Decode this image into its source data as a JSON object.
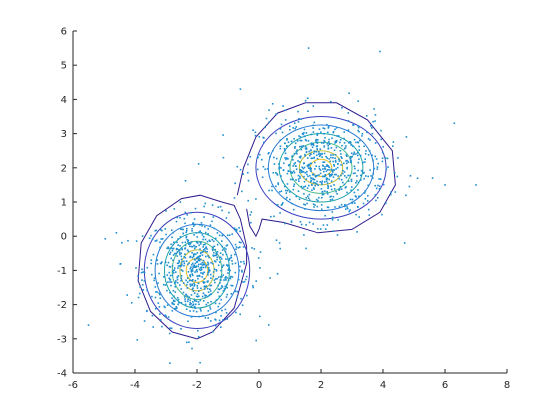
{
  "chart_data": {
    "type": "scatter",
    "title": "",
    "xlabel": "",
    "ylabel": "",
    "xlim": [
      -6,
      8
    ],
    "ylim": [
      -4,
      6
    ],
    "grid": false,
    "legend": "none",
    "x_ticks": [
      -6,
      -4,
      -2,
      0,
      2,
      4,
      6,
      8
    ],
    "y_ticks": [
      -4,
      -3,
      -2,
      -1,
      0,
      1,
      2,
      3,
      4,
      5,
      6
    ],
    "x_tick_labels": [
      "-6",
      "-4",
      "-2",
      "0",
      "2",
      "4",
      "6",
      "8"
    ],
    "y_tick_labels": [
      "-4",
      "-3",
      "-2",
      "-1",
      "0",
      "1",
      "2",
      "3",
      "4",
      "5",
      "6"
    ],
    "point_color": "#1f8fd0",
    "clusters": [
      {
        "center": [
          -2,
          -1
        ],
        "std": [
          0.85,
          0.8
        ],
        "count": 720
      },
      {
        "center": [
          2,
          2
        ],
        "std": [
          1.05,
          0.75
        ],
        "count": 720
      }
    ],
    "scattered_outliers": [
      [
        -5.5,
        -2.6
      ],
      [
        1.6,
        5.5
      ],
      [
        3.9,
        5.4
      ],
      [
        7.0,
        1.5
      ],
      [
        6.3,
        3.3
      ],
      [
        -4.6,
        0.1
      ],
      [
        0.6,
        -1.1
      ],
      [
        -1.9,
        -3.7
      ],
      [
        5.6,
        1.7
      ],
      [
        -0.6,
        4.3
      ],
      [
        4.7,
        -0.2
      ],
      [
        6.0,
        1.5
      ]
    ],
    "contours": {
      "colors": [
        "#2f1b8c",
        "#3a3fbf",
        "#2a7ad4",
        "#1ea3a8",
        "#48b88a",
        "#b8b83a",
        "#e8c020"
      ],
      "outer_envelope": {
        "color": "#2f1b8c",
        "points": [
          [
            -1.2,
            1.0
          ],
          [
            -0.8,
            0.9
          ],
          [
            -0.6,
            0.5
          ],
          [
            -0.4,
            -0.3
          ],
          [
            -0.4,
            -0.8
          ],
          [
            -0.8,
            -2.1
          ],
          [
            -1.5,
            -2.8
          ],
          [
            -2.0,
            -3.0
          ],
          [
            -2.8,
            -2.8
          ],
          [
            -3.5,
            -2.2
          ],
          [
            -3.9,
            -1.3
          ],
          [
            -3.8,
            -0.2
          ],
          [
            -3.3,
            0.6
          ],
          [
            -2.5,
            1.1
          ],
          [
            -1.9,
            1.2
          ],
          [
            -1.2,
            1.0
          ]
        ]
      },
      "outer_envelope_2": {
        "color": "#2f1b8c",
        "points": [
          [
            -0.7,
            1.2
          ],
          [
            -0.5,
            2.0
          ],
          [
            -0.1,
            2.9
          ],
          [
            0.6,
            3.6
          ],
          [
            1.5,
            3.9
          ],
          [
            2.5,
            3.9
          ],
          [
            3.5,
            3.4
          ],
          [
            4.3,
            2.5
          ],
          [
            4.4,
            1.5
          ],
          [
            3.9,
            0.7
          ],
          [
            3.0,
            0.2
          ],
          [
            1.9,
            0.1
          ],
          [
            0.8,
            0.4
          ],
          [
            0.1,
            0.5
          ],
          [
            0.0,
            0.2
          ],
          [
            -0.1,
            0.0
          ],
          [
            -0.3,
            0.3
          ],
          [
            -0.4,
            0.8
          ]
        ]
      },
      "rings": [
        {
          "center": [
            -2,
            -1
          ],
          "rx": [
            1.7,
            1.35,
            1.05,
            0.8,
            0.55,
            0.35
          ],
          "ry": [
            1.7,
            1.35,
            1.1,
            0.85,
            0.6,
            0.35
          ]
        },
        {
          "center": [
            2,
            2
          ],
          "rx": [
            2.1,
            1.7,
            1.35,
            1.0,
            0.7,
            0.35
          ],
          "ry": [
            1.5,
            1.25,
            1.0,
            0.75,
            0.5,
            0.25
          ]
        }
      ]
    }
  }
}
